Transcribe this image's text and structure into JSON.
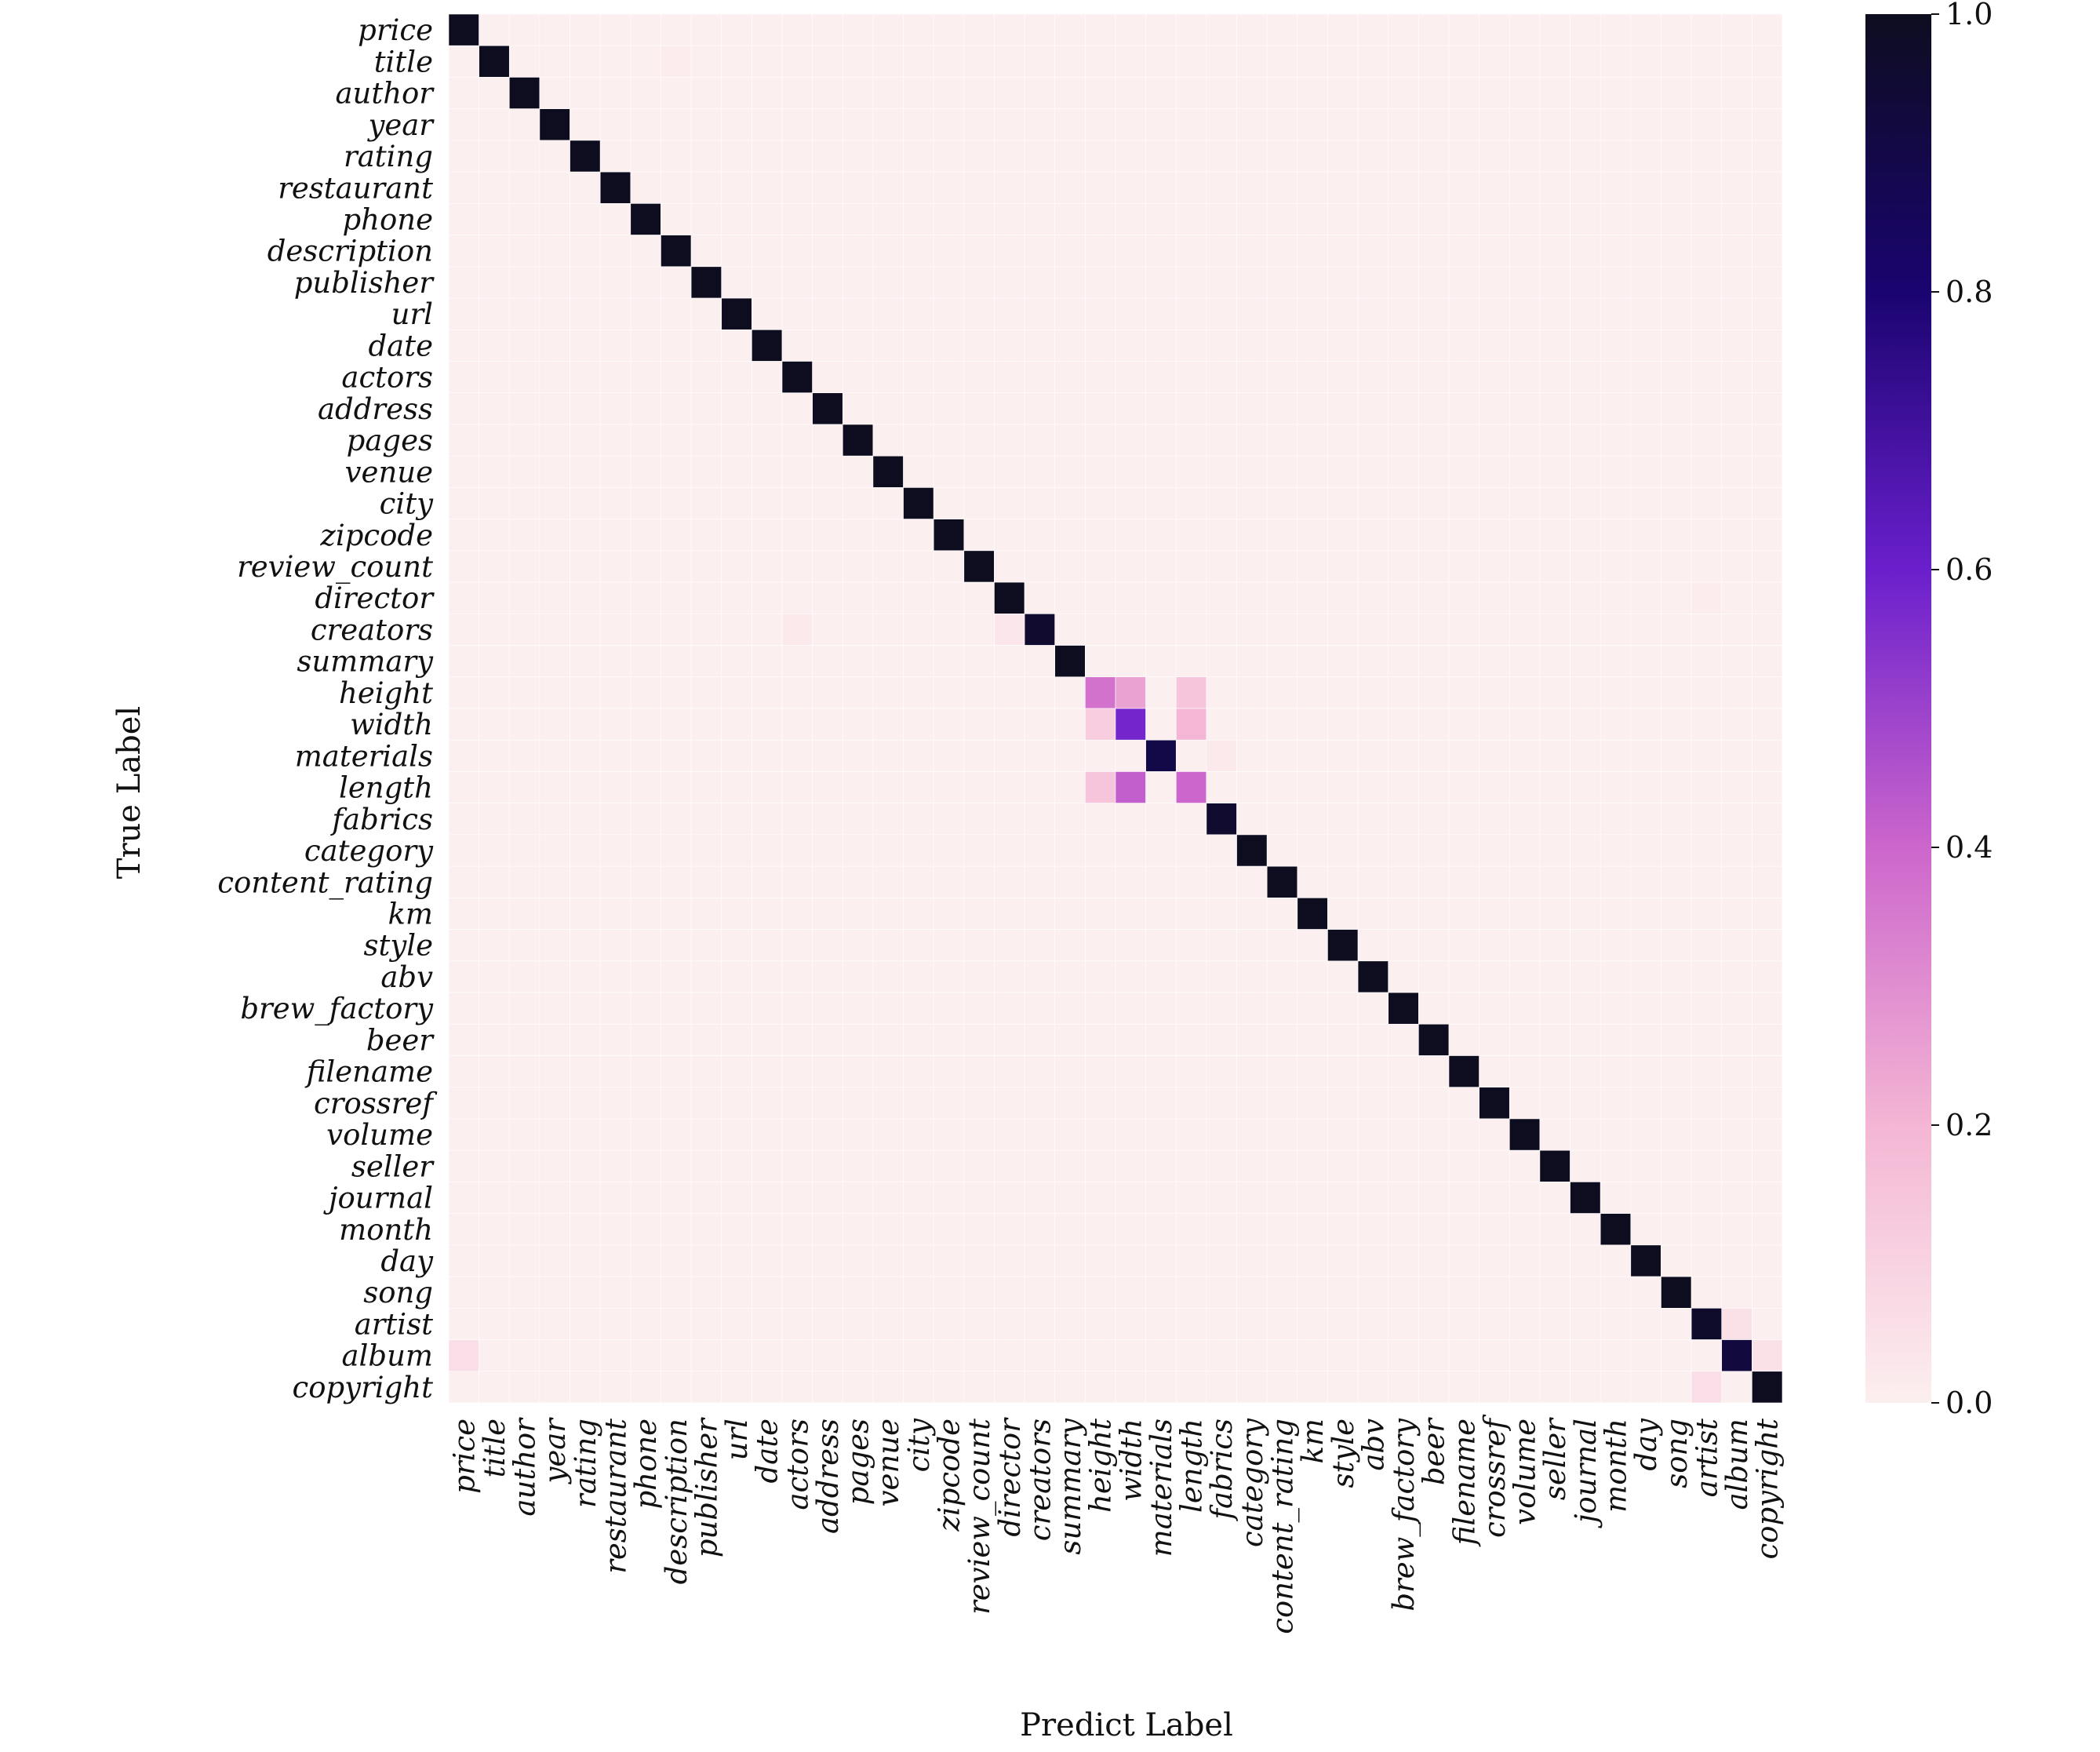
{
  "chart_data": {
    "type": "heatmap",
    "xlabel": "Predict Label",
    "ylabel": "True Label",
    "rows": [
      "price",
      "title",
      "author",
      "year",
      "rating",
      "restaurant",
      "phone",
      "description",
      "publisher",
      "url",
      "date",
      "actors",
      "address",
      "pages",
      "venue",
      "city",
      "zipcode",
      "review_count",
      "director",
      "creators",
      "summary",
      "height",
      "width",
      "materials",
      "length",
      "fabrics",
      "category",
      "content_rating",
      "km",
      "style",
      "abv",
      "brew_factory",
      "beer",
      "filename",
      "crossref",
      "volume",
      "seller",
      "journal",
      "month",
      "day",
      "song",
      "artist",
      "album",
      "copyright"
    ],
    "columns": [
      "price",
      "title",
      "author",
      "year",
      "rating",
      "restaurant",
      "phone",
      "description",
      "publisher",
      "url",
      "date",
      "actors",
      "address",
      "pages",
      "venue",
      "city",
      "zipcode",
      "review_count",
      "director",
      "creators",
      "summary",
      "height",
      "width",
      "materials",
      "length",
      "fabrics",
      "category",
      "content_rating",
      "km",
      "style",
      "abv",
      "brew_factory",
      "beer",
      "filename",
      "crossref",
      "volume",
      "seller",
      "journal",
      "month",
      "day",
      "song",
      "artist",
      "album",
      "copyright"
    ],
    "diagonal": [
      1,
      1,
      1,
      1,
      1,
      1,
      1,
      1,
      1,
      1,
      1,
      1,
      1,
      1,
      1,
      1,
      1,
      1,
      1,
      0.96,
      1,
      0.37,
      0.58,
      0.9,
      0.4,
      0.96,
      1,
      1,
      1,
      1,
      1,
      1,
      1,
      1,
      1,
      1,
      1,
      1,
      1,
      1,
      1,
      0.97,
      0.92,
      1
    ],
    "off_diagonal": [
      {
        "row": "title",
        "col": "description",
        "value": 0.01
      },
      {
        "row": "creators",
        "col": "actors",
        "value": 0.02
      },
      {
        "row": "creators",
        "col": "director",
        "value": 0.03
      },
      {
        "row": "director",
        "col": "artist",
        "value": 0.01
      },
      {
        "row": "height",
        "col": "width",
        "value": 0.25
      },
      {
        "row": "height",
        "col": "length",
        "value": 0.15
      },
      {
        "row": "width",
        "col": "height",
        "value": 0.12
      },
      {
        "row": "width",
        "col": "length",
        "value": 0.2
      },
      {
        "row": "materials",
        "col": "fabrics",
        "value": 0.02
      },
      {
        "row": "length",
        "col": "height",
        "value": 0.15
      },
      {
        "row": "length",
        "col": "width",
        "value": 0.42
      },
      {
        "row": "artist",
        "col": "album",
        "value": 0.05
      },
      {
        "row": "album",
        "col": "price",
        "value": 0.06
      },
      {
        "row": "album",
        "col": "copyright",
        "value": 0.05
      },
      {
        "row": "copyright",
        "col": "artist",
        "value": 0.06
      }
    ],
    "colorbar": {
      "min": 0.0,
      "max": 1.0,
      "ticks": [
        "0.0",
        "0.2",
        "0.4",
        "0.6",
        "0.8",
        "1.0"
      ],
      "colors": [
        "#fcefef",
        "#f4b6d4",
        "#cc66cc",
        "#6a1fcc",
        "#1a0470",
        "#0d0d1f"
      ]
    }
  }
}
